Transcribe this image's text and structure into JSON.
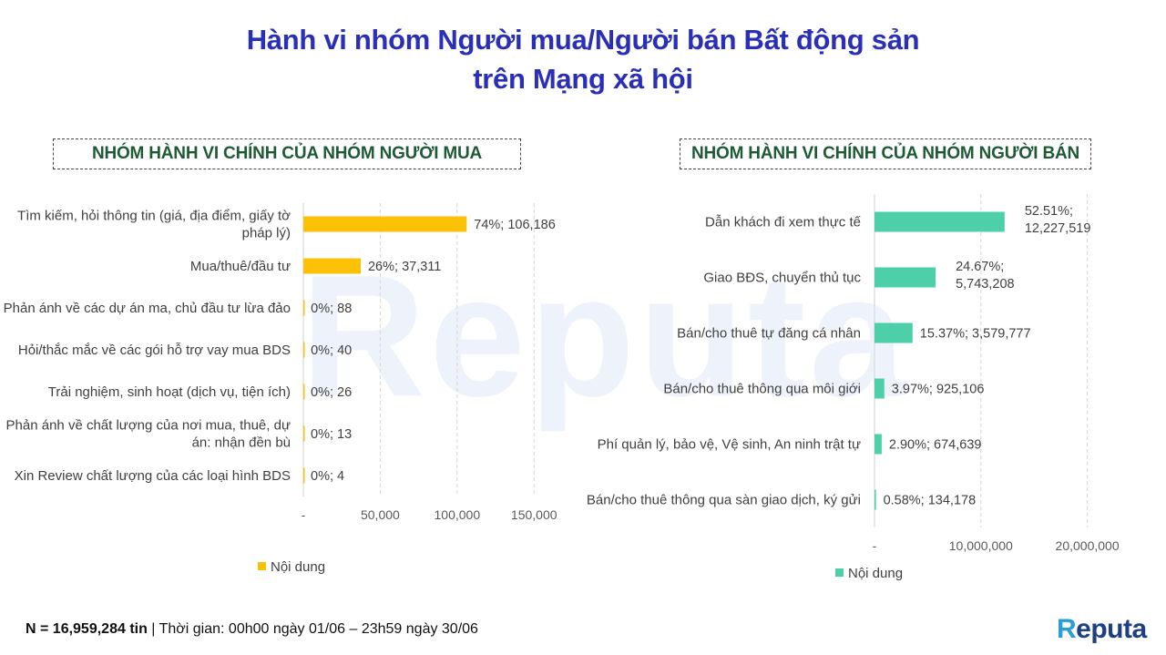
{
  "title_line1": "Hành vi nhóm Người mua/Người bán Bất động sản",
  "title_line2": "trên Mạng xã hội",
  "watermark": "Reputa",
  "footer": {
    "n_label": "N = 16,959,284 tin",
    "period": " | Thời gian: 00h00 ngày 01/06 – 23h59 ngày 30/06"
  },
  "logo": {
    "first": "R",
    "rest": "eputa"
  },
  "colors": {
    "title": "#2a2fb8",
    "header": "#1f5a36",
    "buyer_bar": "#fcc104",
    "seller_bar": "#4dcfaa"
  },
  "chart_data": [
    {
      "type": "bar",
      "orientation": "horizontal",
      "title": "NHÓM HÀNH VI CHÍNH CỦA NHÓM NGƯỜI MUA",
      "categories": [
        "Tìm kiếm, hỏi thông tin (giá, địa điểm, giấy tờ pháp lý)",
        "Mua/thuê/đầu tư",
        "Phản ánh về các dự án ma, chủ đầu tư lừa đảo",
        "Hỏi/thắc mắc về các gói hỗ trợ vay mua BDS",
        "Trải nghiệm, sinh hoạt (dịch vụ, tiện ích)",
        "Phản ánh về chất lượng của nơi mua, thuê, dự án: nhận đền bù",
        "Xin Review chất lượng của các loại hình BDS"
      ],
      "category_lines": [
        [
          "Tìm kiếm, hỏi thông tin (giá, địa điểm, giấy tờ",
          "pháp lý)"
        ],
        [
          "Mua/thuê/đầu tư"
        ],
        [
          "Phản ánh về các dự án ma, chủ đầu tư lừa đảo"
        ],
        [
          "Hỏi/thắc mắc về các gói hỗ trợ vay mua BDS"
        ],
        [
          "Trải nghiệm, sinh hoạt (dịch vụ, tiện ích)"
        ],
        [
          "Phản ánh về chất lượng của nơi mua, thuê, dự",
          "án: nhận đền bù"
        ],
        [
          "Xin Review chất lượng của các loại hình BDS"
        ]
      ],
      "series": [
        {
          "name": "Nội dung",
          "values": [
            106186,
            37311,
            88,
            40,
            26,
            13,
            4
          ]
        }
      ],
      "data_labels": [
        [
          "74%;  106,186"
        ],
        [
          "26%;  37,311"
        ],
        [
          "0%;  88"
        ],
        [
          "0%;  40"
        ],
        [
          "0%;  26"
        ],
        [
          "0%;  13"
        ],
        [
          "0%;  4"
        ]
      ],
      "xlim": [
        0,
        170000
      ],
      "xticks": [
        0,
        50000,
        100000,
        150000
      ],
      "xtick_labels": [
        "-",
        "50,000",
        "100,000",
        "150,000"
      ],
      "grid": "vertical dashed",
      "legend": "bottom-left"
    },
    {
      "type": "bar",
      "orientation": "horizontal",
      "title": "NHÓM HÀNH VI CHÍNH CỦA NHÓM NGƯỜI BÁN",
      "categories": [
        "Dẫn khách đi xem thực tế",
        "Giao BĐS, chuyển thủ tục",
        "Bán/cho thuê tự đăng cá nhân",
        "Bán/cho thuê thông qua môi giới",
        "Phí quản lý, bảo vệ, Vệ sinh, An ninh trật tự",
        "Bán/cho thuê thông qua sàn giao dịch, ký gửi"
      ],
      "category_lines": [
        [
          "Dẫn khách đi xem thực tế"
        ],
        [
          "Giao BĐS, chuyển thủ tục"
        ],
        [
          "Bán/cho thuê tự đăng cá nhân"
        ],
        [
          "Bán/cho thuê thông qua môi giới"
        ],
        [
          "Phí quản lý, bảo vệ, Vệ sinh, An ninh trật tự"
        ],
        [
          "Bán/cho thuê thông qua sàn giao dịch, ký gửi"
        ]
      ],
      "series": [
        {
          "name": "Nội dung",
          "values": [
            12227519,
            5743208,
            3579777,
            925106,
            674639,
            134178
          ]
        }
      ],
      "data_labels": [
        [
          "52.51%;",
          "12,227,519"
        ],
        [
          "24.67%;",
          "5,743,208"
        ],
        [
          "15.37%;  3,579,777"
        ],
        [
          "3.97%;  925,106"
        ],
        [
          "2.90%;  674,639"
        ],
        [
          "0.58%;  134,178"
        ]
      ],
      "xlim": [
        0,
        25000000
      ],
      "xticks": [
        0,
        10000000,
        20000000
      ],
      "xtick_labels": [
        "-",
        "10,000,000",
        "20,000,000"
      ],
      "grid": "vertical dashed",
      "legend": "bottom-left"
    }
  ]
}
